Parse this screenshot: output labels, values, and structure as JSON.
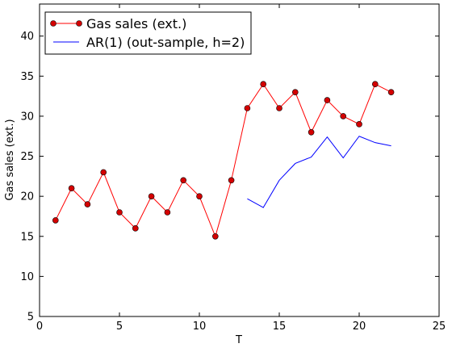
{
  "chart_data": {
    "type": "line",
    "xlabel": "T",
    "ylabel": "Gas sales (ext.)",
    "xlim": [
      0,
      25
    ],
    "ylim": [
      5,
      44
    ],
    "xticks": [
      0,
      5,
      10,
      15,
      20,
      25
    ],
    "yticks": [
      5,
      10,
      15,
      20,
      25,
      30,
      35,
      40
    ],
    "grid": false,
    "legend_position": "top-left",
    "series": [
      {
        "name": "Gas sales (ext.)",
        "color": "#ff0000",
        "marker": "circle",
        "x": [
          1,
          2,
          3,
          4,
          5,
          6,
          7,
          8,
          9,
          10,
          11,
          12,
          13,
          14,
          15,
          16,
          17,
          18,
          19,
          20,
          21,
          22
        ],
        "y": [
          17,
          21,
          19,
          23,
          18,
          16,
          20,
          18,
          22,
          20,
          15,
          22,
          31,
          34,
          31,
          33,
          28,
          32,
          30,
          29,
          34,
          33
        ]
      },
      {
        "name": "AR(1) (out-sample, h=2)",
        "color": "#0000ff",
        "marker": "none",
        "x": [
          13,
          14,
          15,
          16,
          17,
          18,
          19,
          20,
          21,
          22
        ],
        "y": [
          19.7,
          18.6,
          22.0,
          24.1,
          24.9,
          27.4,
          24.8,
          27.5,
          26.7,
          26.3
        ]
      }
    ]
  }
}
